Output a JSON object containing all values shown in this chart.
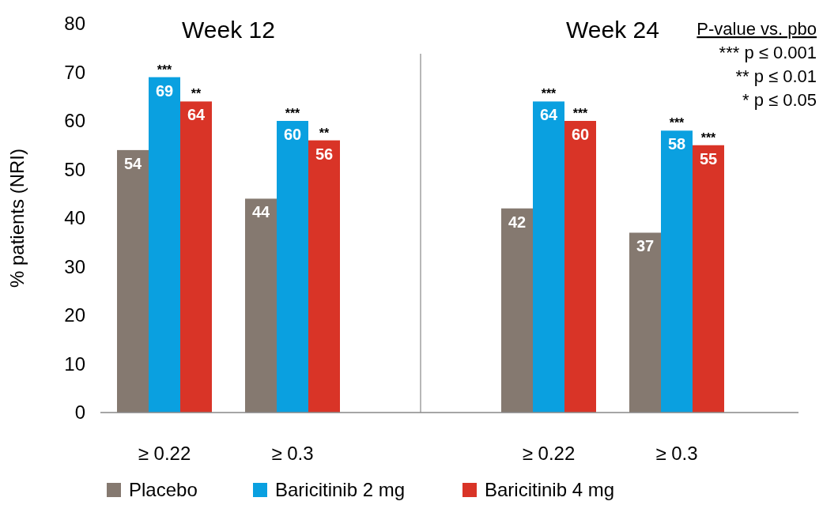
{
  "chart_data": {
    "type": "bar",
    "ylabel": "% patients (NRI)",
    "categories": [
      "≥ 0.22",
      "≥ 0.3",
      null,
      "≥ 0.22",
      "≥ 0.3"
    ],
    "series": [
      {
        "name": "Placebo",
        "color": "#857970",
        "values": [
          54,
          44,
          null,
          42,
          37
        ]
      },
      {
        "name": "Baricitinib 2 mg",
        "color": "#0aa0e0",
        "values": [
          69,
          60,
          null,
          64,
          58
        ]
      },
      {
        "name": "Baricitinib 4 mg",
        "color": "#d93427",
        "values": [
          64,
          56,
          null,
          60,
          55
        ]
      }
    ],
    "ylim": [
      0,
      80
    ],
    "yticks": [
      0,
      10,
      20,
      30,
      40,
      50,
      60,
      70,
      80
    ],
    "data_labels": true,
    "legend": "bottom",
    "annotations": [
      "Week 12",
      "Week 24",
      "P-value vs. pbo",
      "*** p ≤ 0.001",
      "** p ≤ 0.01",
      "* p ≤ 0.05",
      "***",
      "**",
      "***",
      "**",
      "***",
      "***",
      "***",
      "***"
    ]
  }
}
